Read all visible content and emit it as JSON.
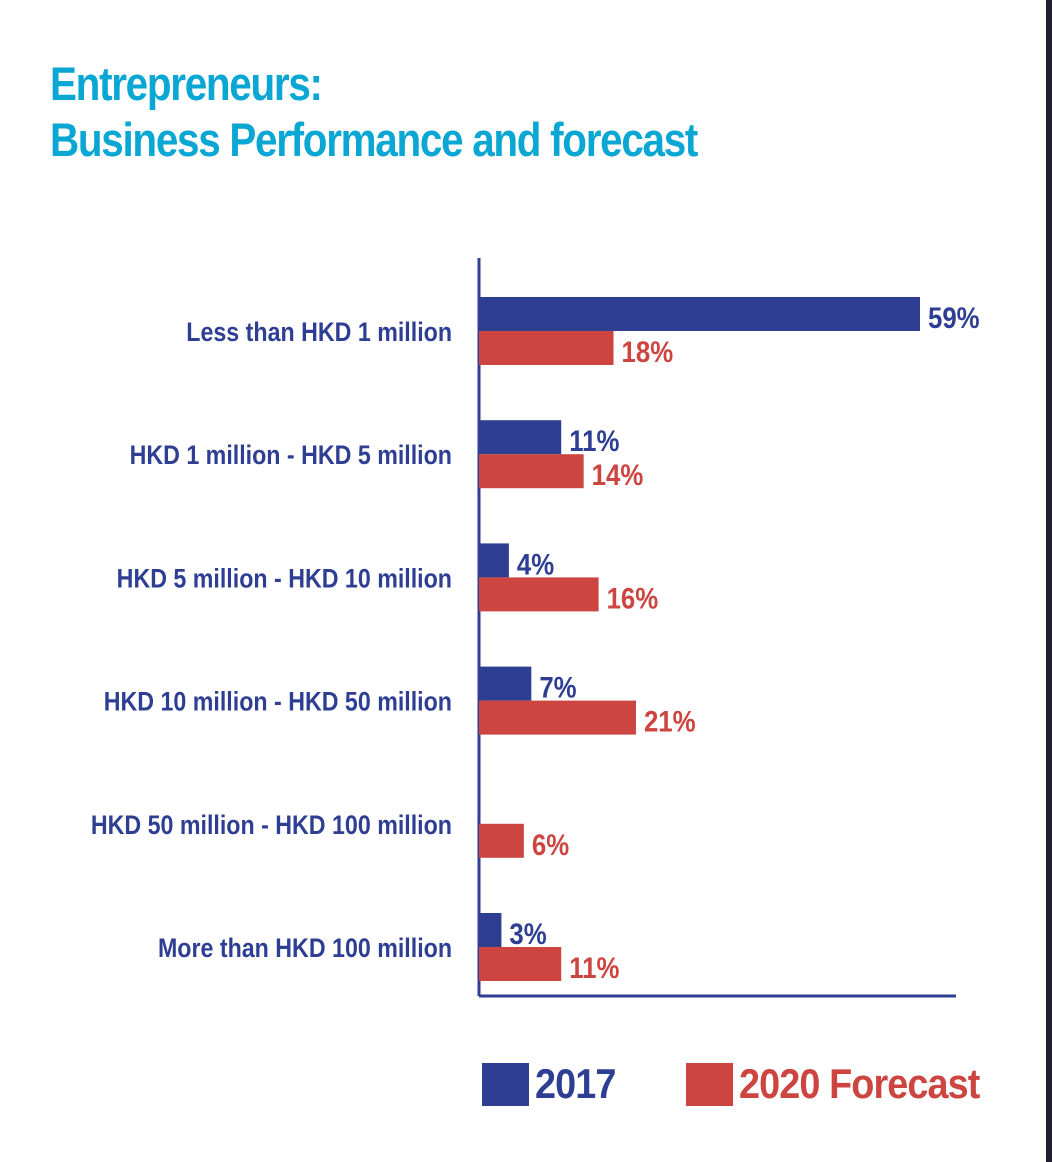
{
  "title": {
    "line1": "Entrepreneurs:",
    "line2": "Business Performance and forecast"
  },
  "colors": {
    "title": "#0aa6d4",
    "series_2017": "#2e3f93",
    "series_2020": "#cc4540",
    "category_text": "#2e3f93",
    "axis": "#2e3f93"
  },
  "legend": {
    "items": [
      {
        "label": "2017",
        "color": "#2e3f93"
      },
      {
        "label": "2020  Forecast",
        "color": "#cc4540"
      }
    ]
  },
  "chart_data": {
    "type": "bar",
    "orientation": "horizontal",
    "categories": [
      "Less than HKD 1 million",
      "HKD 1 million - HKD 5 million",
      "HKD 5 million - HKD 10 million",
      "HKD 10 million - HKD 50 million",
      "HKD 50 million - HKD 100 million",
      "More than HKD 100 million"
    ],
    "series": [
      {
        "name": "2017",
        "color": "#2e3f93",
        "values": [
          59,
          11,
          4,
          7,
          null,
          3
        ],
        "labels": [
          "59%",
          "11%",
          "4%",
          "7%",
          "",
          "3%"
        ]
      },
      {
        "name": "2020  Forecast",
        "color": "#cc4540",
        "values": [
          18,
          14,
          16,
          21,
          6,
          11
        ],
        "labels": [
          "18%",
          "14%",
          "16%",
          "21%",
          "6%",
          "11%"
        ]
      }
    ],
    "xlim": [
      0,
      63
    ],
    "grid": false,
    "legend_position": "bottom"
  }
}
